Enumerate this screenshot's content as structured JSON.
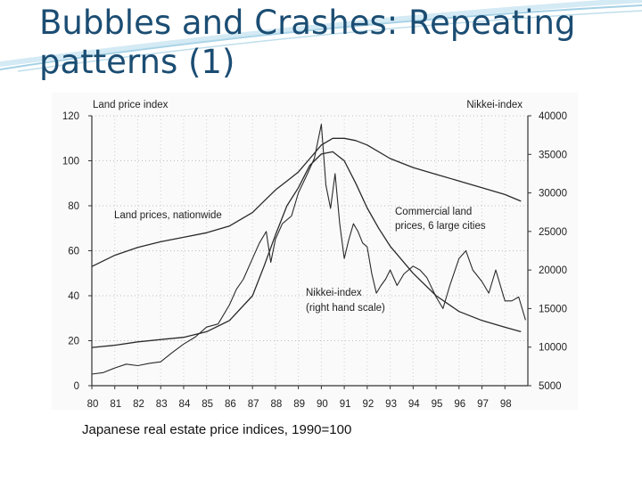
{
  "slide": {
    "title": "Bubbles and Crashes: Repeating patterns (1)",
    "caption": "Japanese real estate price indices, 1990=100"
  },
  "colors": {
    "title": "#1b4d73",
    "header_swoosh": "#8fc6de",
    "line": "#2a2a2a"
  },
  "chart_data": {
    "type": "line",
    "title": "",
    "left_axis_label": "Land price index",
    "right_axis_label": "Nikkei-index",
    "categories": [
      "80",
      "81",
      "82",
      "83",
      "84",
      "85",
      "86",
      "87",
      "88",
      "89",
      "90",
      "91",
      "92",
      "93",
      "94",
      "95",
      "96",
      "97",
      "98"
    ],
    "ylim_left": [
      0,
      120
    ],
    "yticks_left": [
      "120",
      "100",
      "80",
      "60",
      "40",
      "20",
      "0"
    ],
    "ylim_right": [
      5000,
      40000
    ],
    "yticks_right": [
      "40000",
      "35000",
      "30000",
      "25000",
      "20000",
      "15000",
      "10000",
      "5000"
    ],
    "xlim": [
      1980,
      1999
    ],
    "grid": true,
    "annotations": {
      "land_label": "Land prices, nationwide",
      "commercial_label_line1": "Commercial land",
      "commercial_label_line2": "prices, 6 large cities",
      "nikkei_label_line1": "Nikkei-index",
      "nikkei_label_line2": "(right hand scale)"
    },
    "series": [
      {
        "name": "Land prices, nationwide",
        "axis": "left",
        "x": [
          1980,
          1981,
          1982,
          1983,
          1984,
          1985,
          1986,
          1987,
          1987.5,
          1988,
          1988.5,
          1989,
          1989.5,
          1990,
          1990.5,
          1991,
          1991.5,
          1992,
          1993,
          1994,
          1995,
          1996,
          1997,
          1998,
          1998.7
        ],
        "y": [
          53,
          58,
          61.5,
          64,
          66,
          68,
          71,
          77,
          82,
          87,
          91,
          95,
          101,
          107,
          110,
          110,
          109,
          107,
          101,
          97,
          94,
          91,
          88,
          85,
          82
        ]
      },
      {
        "name": "Commercial land prices, 6 large cities",
        "axis": "left",
        "x": [
          1980,
          1981,
          1982,
          1983,
          1984,
          1985,
          1986,
          1987,
          1987.5,
          1988,
          1988.5,
          1989,
          1989.5,
          1990,
          1990.5,
          1991,
          1991.5,
          1992,
          1992.5,
          1993,
          1994,
          1995,
          1996,
          1997,
          1998,
          1998.7
        ],
        "y": [
          17,
          18,
          19.5,
          20.5,
          21.5,
          24,
          29,
          40,
          53,
          67,
          80,
          88,
          98,
          103,
          104,
          100,
          90,
          79,
          70,
          62,
          50,
          40,
          33,
          29,
          26,
          24
        ]
      },
      {
        "name": "Nikkei-index",
        "axis": "right",
        "x": [
          1980,
          1980.5,
          1981,
          1981.5,
          1982,
          1982.5,
          1983,
          1983.5,
          1984,
          1984.5,
          1985,
          1985.5,
          1986,
          1986.3,
          1986.6,
          1987,
          1987.3,
          1987.6,
          1987.8,
          1988,
          1988.3,
          1988.7,
          1989,
          1989.4,
          1989.7,
          1990,
          1990.2,
          1990.4,
          1990.6,
          1990.8,
          1991,
          1991.2,
          1991.4,
          1991.6,
          1991.8,
          1992,
          1992.2,
          1992.4,
          1992.6,
          1992.8,
          1993,
          1993.3,
          1993.6,
          1994,
          1994.3,
          1994.6,
          1995,
          1995.3,
          1995.6,
          1996,
          1996.3,
          1996.6,
          1997,
          1997.3,
          1997.6,
          1998,
          1998.3,
          1998.6,
          1998.9
        ],
        "y": [
          6500,
          6700,
          7300,
          7800,
          7600,
          7900,
          8100,
          9300,
          10400,
          11300,
          12600,
          13000,
          15500,
          17500,
          18800,
          21500,
          23500,
          25000,
          21000,
          24000,
          26000,
          27000,
          30000,
          32500,
          34500,
          38900,
          31000,
          28000,
          32500,
          26000,
          21500,
          24000,
          26000,
          25000,
          23500,
          23000,
          19500,
          17000,
          18000,
          18800,
          20000,
          18000,
          19500,
          20500,
          20000,
          19000,
          16500,
          15000,
          18000,
          21500,
          22500,
          20000,
          18500,
          17000,
          20000,
          16000,
          16000,
          16500,
          13500
        ]
      }
    ]
  }
}
